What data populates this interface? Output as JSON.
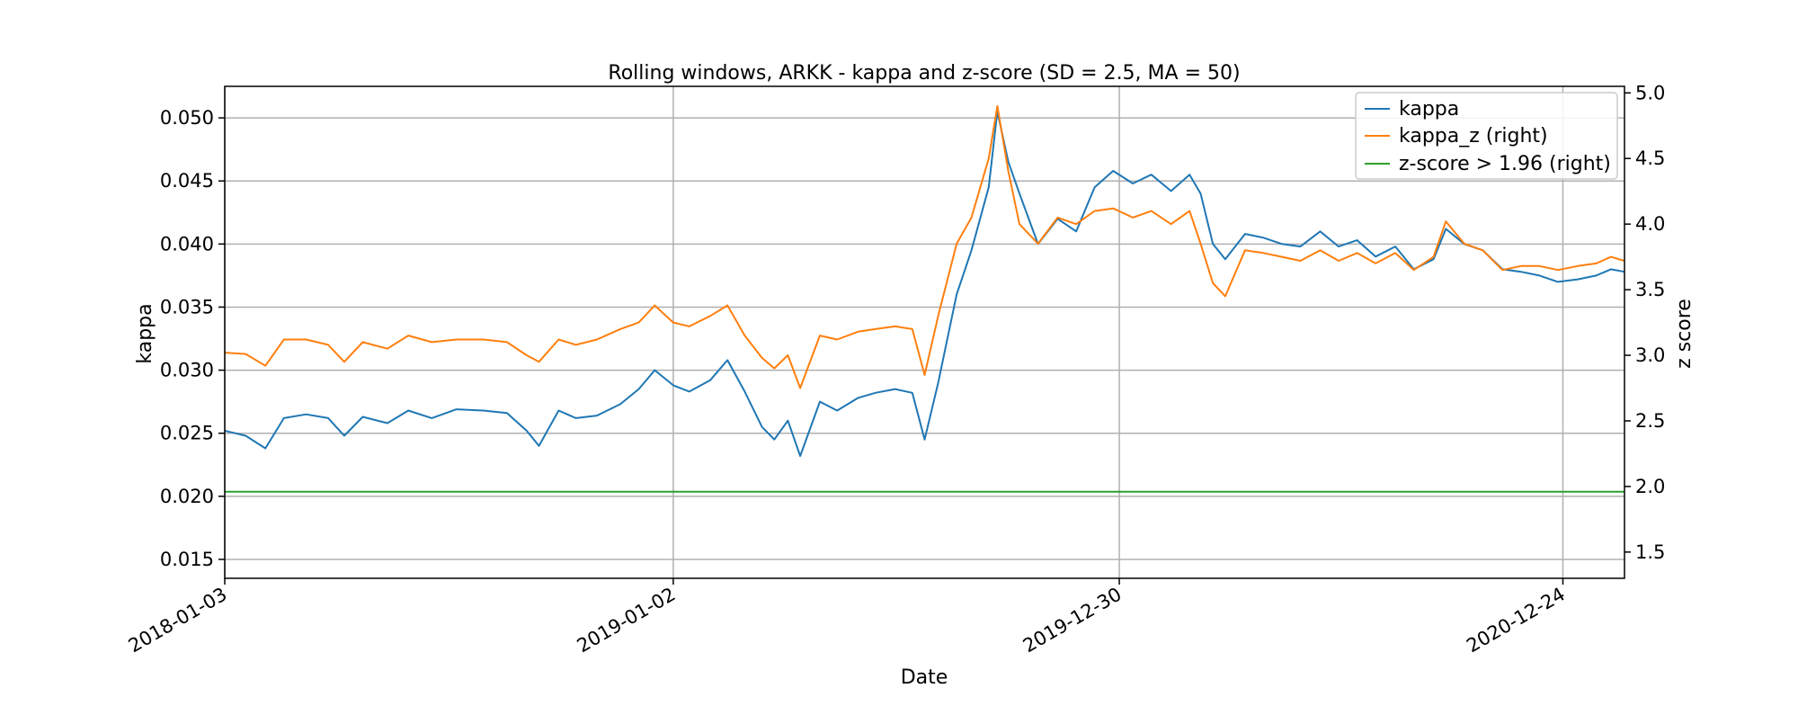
{
  "chart_data": {
    "type": "line",
    "title": "Rolling windows, ARKK - kappa and z-score (SD = 2.5, MA = 50)",
    "xlabel": "Date",
    "ylabel_left": "kappa",
    "ylabel_right": "z score",
    "x_tick_labels": [
      "2018-01-03",
      "2019-01-02",
      "2019-12-30",
      "2020-12-24"
    ],
    "y_left_ticks": [
      "0.015",
      "0.020",
      "0.025",
      "0.030",
      "0.035",
      "0.040",
      "0.045",
      "0.050"
    ],
    "y_right_ticks": [
      "1.5",
      "2.0",
      "2.5",
      "3.0",
      "3.5",
      "4.0",
      "4.5",
      "5.0"
    ],
    "xlim": [
      "2018-01-03",
      "2021-02-12"
    ],
    "ylim_left": [
      0.0135,
      0.0525
    ],
    "ylim_right": [
      1.3,
      5.05
    ],
    "grid": true,
    "legend_position": "top-right",
    "series": [
      {
        "name": "kappa",
        "axis": "left",
        "color": "#1f77b4",
        "points": [
          [
            "2018-01-03",
            0.0252
          ],
          [
            "2018-01-20",
            0.0248
          ],
          [
            "2018-02-05",
            0.0238
          ],
          [
            "2018-02-20",
            0.0262
          ],
          [
            "2018-03-10",
            0.0265
          ],
          [
            "2018-03-28",
            0.0262
          ],
          [
            "2018-04-10",
            0.0248
          ],
          [
            "2018-04-25",
            0.0263
          ],
          [
            "2018-05-15",
            0.0258
          ],
          [
            "2018-06-01",
            0.0268
          ],
          [
            "2018-06-20",
            0.0262
          ],
          [
            "2018-07-10",
            0.0269
          ],
          [
            "2018-08-01",
            0.0268
          ],
          [
            "2018-08-20",
            0.0266
          ],
          [
            "2018-09-05",
            0.0252
          ],
          [
            "2018-09-15",
            0.024
          ],
          [
            "2018-10-01",
            0.0268
          ],
          [
            "2018-10-15",
            0.0262
          ],
          [
            "2018-11-01",
            0.0264
          ],
          [
            "2018-11-20",
            0.0273
          ],
          [
            "2018-12-05",
            0.0285
          ],
          [
            "2018-12-18",
            0.03
          ],
          [
            "2019-01-02",
            0.0288
          ],
          [
            "2019-01-15",
            0.0283
          ],
          [
            "2019-02-01",
            0.0292
          ],
          [
            "2019-02-15",
            0.0308
          ],
          [
            "2019-03-01",
            0.0283
          ],
          [
            "2019-03-15",
            0.0255
          ],
          [
            "2019-03-25",
            0.0245
          ],
          [
            "2019-04-05",
            0.026
          ],
          [
            "2019-04-15",
            0.0232
          ],
          [
            "2019-05-01",
            0.0275
          ],
          [
            "2019-05-15",
            0.0268
          ],
          [
            "2019-06-01",
            0.0278
          ],
          [
            "2019-06-15",
            0.0282
          ],
          [
            "2019-07-01",
            0.0285
          ],
          [
            "2019-07-15",
            0.0282
          ],
          [
            "2019-07-25",
            0.0245
          ],
          [
            "2019-08-05",
            0.029
          ],
          [
            "2019-08-20",
            0.036
          ],
          [
            "2019-09-01",
            0.0395
          ],
          [
            "2019-09-15",
            0.0445
          ],
          [
            "2019-09-22",
            0.0505
          ],
          [
            "2019-10-01",
            0.0465
          ],
          [
            "2019-10-10",
            0.044
          ],
          [
            "2019-10-25",
            0.04
          ],
          [
            "2019-11-10",
            0.042
          ],
          [
            "2019-11-25",
            0.041
          ],
          [
            "2019-12-10",
            0.0445
          ],
          [
            "2019-12-25",
            0.0458
          ],
          [
            "2020-01-10",
            0.0448
          ],
          [
            "2020-01-25",
            0.0455
          ],
          [
            "2020-02-10",
            0.0442
          ],
          [
            "2020-02-25",
            0.0455
          ],
          [
            "2020-03-05",
            0.044
          ],
          [
            "2020-03-15",
            0.04
          ],
          [
            "2020-03-25",
            0.0388
          ],
          [
            "2020-04-10",
            0.0408
          ],
          [
            "2020-04-25",
            0.0405
          ],
          [
            "2020-05-10",
            0.04
          ],
          [
            "2020-05-25",
            0.0398
          ],
          [
            "2020-06-10",
            0.041
          ],
          [
            "2020-06-25",
            0.0398
          ],
          [
            "2020-07-10",
            0.0403
          ],
          [
            "2020-07-25",
            0.039
          ],
          [
            "2020-08-10",
            0.0398
          ],
          [
            "2020-08-25",
            0.038
          ],
          [
            "2020-09-10",
            0.0388
          ],
          [
            "2020-09-20",
            0.0412
          ],
          [
            "2020-10-05",
            0.04
          ],
          [
            "2020-10-20",
            0.0395
          ],
          [
            "2020-11-05",
            0.038
          ],
          [
            "2020-11-20",
            0.0378
          ],
          [
            "2020-12-05",
            0.0375
          ],
          [
            "2020-12-20",
            0.037
          ],
          [
            "2021-01-05",
            0.0372
          ],
          [
            "2021-01-20",
            0.0375
          ],
          [
            "2021-02-01",
            0.038
          ],
          [
            "2021-02-12",
            0.0378
          ]
        ]
      },
      {
        "name": "kappa_z (right)",
        "axis": "right",
        "color": "#ff7f0e",
        "points": [
          [
            "2018-01-03",
            3.02
          ],
          [
            "2018-01-20",
            3.01
          ],
          [
            "2018-02-05",
            2.92
          ],
          [
            "2018-02-20",
            3.12
          ],
          [
            "2018-03-10",
            3.12
          ],
          [
            "2018-03-28",
            3.08
          ],
          [
            "2018-04-10",
            2.95
          ],
          [
            "2018-04-25",
            3.1
          ],
          [
            "2018-05-15",
            3.05
          ],
          [
            "2018-06-01",
            3.15
          ],
          [
            "2018-06-20",
            3.1
          ],
          [
            "2018-07-10",
            3.12
          ],
          [
            "2018-08-01",
            3.12
          ],
          [
            "2018-08-20",
            3.1
          ],
          [
            "2018-09-05",
            3.0
          ],
          [
            "2018-09-15",
            2.95
          ],
          [
            "2018-10-01",
            3.12
          ],
          [
            "2018-10-15",
            3.08
          ],
          [
            "2018-11-01",
            3.12
          ],
          [
            "2018-11-20",
            3.2
          ],
          [
            "2018-12-05",
            3.25
          ],
          [
            "2018-12-18",
            3.38
          ],
          [
            "2019-01-02",
            3.25
          ],
          [
            "2019-01-15",
            3.22
          ],
          [
            "2019-02-01",
            3.3
          ],
          [
            "2019-02-15",
            3.38
          ],
          [
            "2019-03-01",
            3.15
          ],
          [
            "2019-03-15",
            2.98
          ],
          [
            "2019-03-25",
            2.9
          ],
          [
            "2019-04-05",
            3.0
          ],
          [
            "2019-04-15",
            2.75
          ],
          [
            "2019-05-01",
            3.15
          ],
          [
            "2019-05-15",
            3.12
          ],
          [
            "2019-06-01",
            3.18
          ],
          [
            "2019-06-15",
            3.2
          ],
          [
            "2019-07-01",
            3.22
          ],
          [
            "2019-07-15",
            3.2
          ],
          [
            "2019-07-25",
            2.85
          ],
          [
            "2019-08-05",
            3.3
          ],
          [
            "2019-08-20",
            3.85
          ],
          [
            "2019-09-01",
            4.05
          ],
          [
            "2019-09-15",
            4.5
          ],
          [
            "2019-09-22",
            4.9
          ],
          [
            "2019-10-01",
            4.4
          ],
          [
            "2019-10-10",
            4.0
          ],
          [
            "2019-10-25",
            3.85
          ],
          [
            "2019-11-10",
            4.05
          ],
          [
            "2019-11-25",
            4.0
          ],
          [
            "2019-12-10",
            4.1
          ],
          [
            "2019-12-25",
            4.12
          ],
          [
            "2020-01-10",
            4.05
          ],
          [
            "2020-01-25",
            4.1
          ],
          [
            "2020-02-10",
            4.0
          ],
          [
            "2020-02-25",
            4.1
          ],
          [
            "2020-03-05",
            3.85
          ],
          [
            "2020-03-15",
            3.55
          ],
          [
            "2020-03-25",
            3.45
          ],
          [
            "2020-04-10",
            3.8
          ],
          [
            "2020-04-25",
            3.78
          ],
          [
            "2020-05-10",
            3.75
          ],
          [
            "2020-05-25",
            3.72
          ],
          [
            "2020-06-10",
            3.8
          ],
          [
            "2020-06-25",
            3.72
          ],
          [
            "2020-07-10",
            3.78
          ],
          [
            "2020-07-25",
            3.7
          ],
          [
            "2020-08-10",
            3.78
          ],
          [
            "2020-08-25",
            3.65
          ],
          [
            "2020-09-10",
            3.75
          ],
          [
            "2020-09-20",
            4.02
          ],
          [
            "2020-10-05",
            3.85
          ],
          [
            "2020-10-20",
            3.8
          ],
          [
            "2020-11-05",
            3.65
          ],
          [
            "2020-11-20",
            3.68
          ],
          [
            "2020-12-05",
            3.68
          ],
          [
            "2020-12-20",
            3.65
          ],
          [
            "2021-01-05",
            3.68
          ],
          [
            "2021-01-20",
            3.7
          ],
          [
            "2021-02-01",
            3.75
          ],
          [
            "2021-02-12",
            3.72
          ]
        ]
      },
      {
        "name": "z-score > 1.96 (right)",
        "axis": "right",
        "color": "#2ca02c",
        "points": [
          [
            "2018-01-03",
            1.96
          ],
          [
            "2021-02-12",
            1.96
          ]
        ]
      }
    ]
  }
}
